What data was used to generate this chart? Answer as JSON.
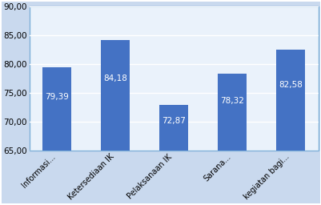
{
  "categories": [
    "Informasi...",
    "Ketersediaan IK",
    "Pelaksanaan IK",
    "Sarana...",
    "kegiatan bagi..."
  ],
  "values": [
    79.39,
    84.18,
    72.87,
    78.32,
    82.58
  ],
  "bar_color": "#4472C4",
  "bar_labels": [
    "79,39",
    "84,18",
    "72,87",
    "78,32",
    "82,58"
  ],
  "ylim": [
    65.0,
    90.0
  ],
  "yticks": [
    65.0,
    70.0,
    75.0,
    80.0,
    85.0,
    90.0
  ],
  "ytick_labels": [
    "65,00",
    "70,00",
    "75,00",
    "80,00",
    "85,00",
    "90,00"
  ],
  "background_color": "#C9D9EE",
  "plot_bg_color": "#EAF2FB",
  "grid_color": "#FFFFFF",
  "border_color": "#7EB0D8",
  "label_fontsize": 7.0,
  "tick_fontsize": 7.5,
  "bar_label_fontsize": 7.5,
  "bar_label_color": "#FFFFFF"
}
